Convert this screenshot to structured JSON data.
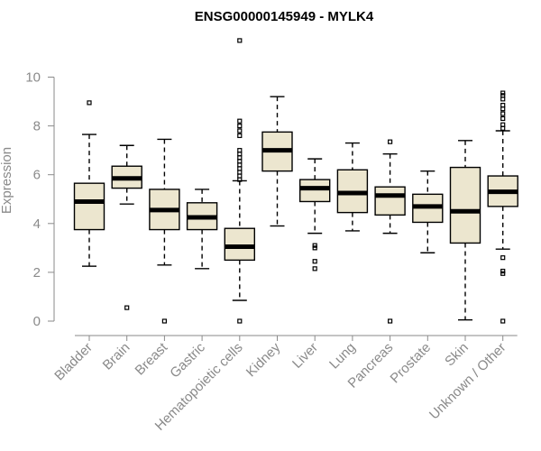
{
  "chart_data": {
    "type": "boxplot",
    "title": "ENSG00000145949 - MYLK4",
    "xlabel": "",
    "ylabel": "Expression",
    "ylim": [
      0,
      11.7
    ],
    "yticks": [
      0,
      2,
      4,
      6,
      8,
      10
    ],
    "colors": {
      "box_fill": "#ece6cf",
      "stroke": "#000000",
      "axis": "#8a8a8a"
    },
    "categories": [
      "Bladder",
      "Brain",
      "Breast",
      "Gastric",
      "Hematopoietic cells",
      "Kidney",
      "Liver",
      "Lung",
      "Pancreas",
      "Prostate",
      "Skin",
      "Unknown / Other"
    ],
    "boxes": [
      {
        "name": "Bladder",
        "whisker_low": 2.25,
        "q1": 3.75,
        "median": 4.9,
        "q3": 5.65,
        "whisker_high": 7.65,
        "outliers": [
          8.95
        ]
      },
      {
        "name": "Brain",
        "whisker_low": 4.8,
        "q1": 5.45,
        "median": 5.85,
        "q3": 6.35,
        "whisker_high": 7.2,
        "outliers": [
          0.55
        ]
      },
      {
        "name": "Breast",
        "whisker_low": 2.3,
        "q1": 3.75,
        "median": 4.55,
        "q3": 5.4,
        "whisker_high": 7.45,
        "outliers": [
          0.0
        ]
      },
      {
        "name": "Gastric",
        "whisker_low": 2.15,
        "q1": 3.75,
        "median": 4.25,
        "q3": 4.85,
        "whisker_high": 5.4,
        "outliers": []
      },
      {
        "name": "Hematopoietic cells",
        "whisker_low": 0.85,
        "q1": 2.5,
        "median": 3.05,
        "q3": 3.8,
        "whisker_high": 5.75,
        "outliers": [
          0.0,
          5.8,
          5.95,
          6.1,
          6.25,
          6.4,
          6.55,
          6.7,
          6.85,
          7.0,
          7.6,
          7.8,
          8.0,
          8.2,
          11.5
        ]
      },
      {
        "name": "Kidney",
        "whisker_low": 3.9,
        "q1": 6.15,
        "median": 7.0,
        "q3": 7.75,
        "whisker_high": 9.2,
        "outliers": []
      },
      {
        "name": "Liver",
        "whisker_low": 3.6,
        "q1": 4.9,
        "median": 5.45,
        "q3": 5.8,
        "whisker_high": 6.65,
        "outliers": [
          2.15,
          2.45,
          3.0,
          3.1
        ]
      },
      {
        "name": "Lung",
        "whisker_low": 3.7,
        "q1": 4.45,
        "median": 5.25,
        "q3": 6.2,
        "whisker_high": 7.3,
        "outliers": []
      },
      {
        "name": "Pancreas",
        "whisker_low": 3.6,
        "q1": 4.35,
        "median": 5.15,
        "q3": 5.5,
        "whisker_high": 6.85,
        "outliers": [
          0.0,
          7.35
        ]
      },
      {
        "name": "Prostate",
        "whisker_low": 2.8,
        "q1": 4.05,
        "median": 4.7,
        "q3": 5.2,
        "whisker_high": 6.15,
        "outliers": []
      },
      {
        "name": "Skin",
        "whisker_low": 0.05,
        "q1": 3.2,
        "median": 4.5,
        "q3": 6.3,
        "whisker_high": 7.4,
        "outliers": []
      },
      {
        "name": "Unknown / Other",
        "whisker_low": 2.95,
        "q1": 4.7,
        "median": 5.3,
        "q3": 5.95,
        "whisker_high": 7.8,
        "outliers": [
          0.0,
          1.95,
          2.05,
          2.6,
          7.9,
          8.05,
          8.3,
          8.5,
          8.7,
          8.85,
          9.1,
          9.25,
          9.35
        ]
      }
    ]
  }
}
